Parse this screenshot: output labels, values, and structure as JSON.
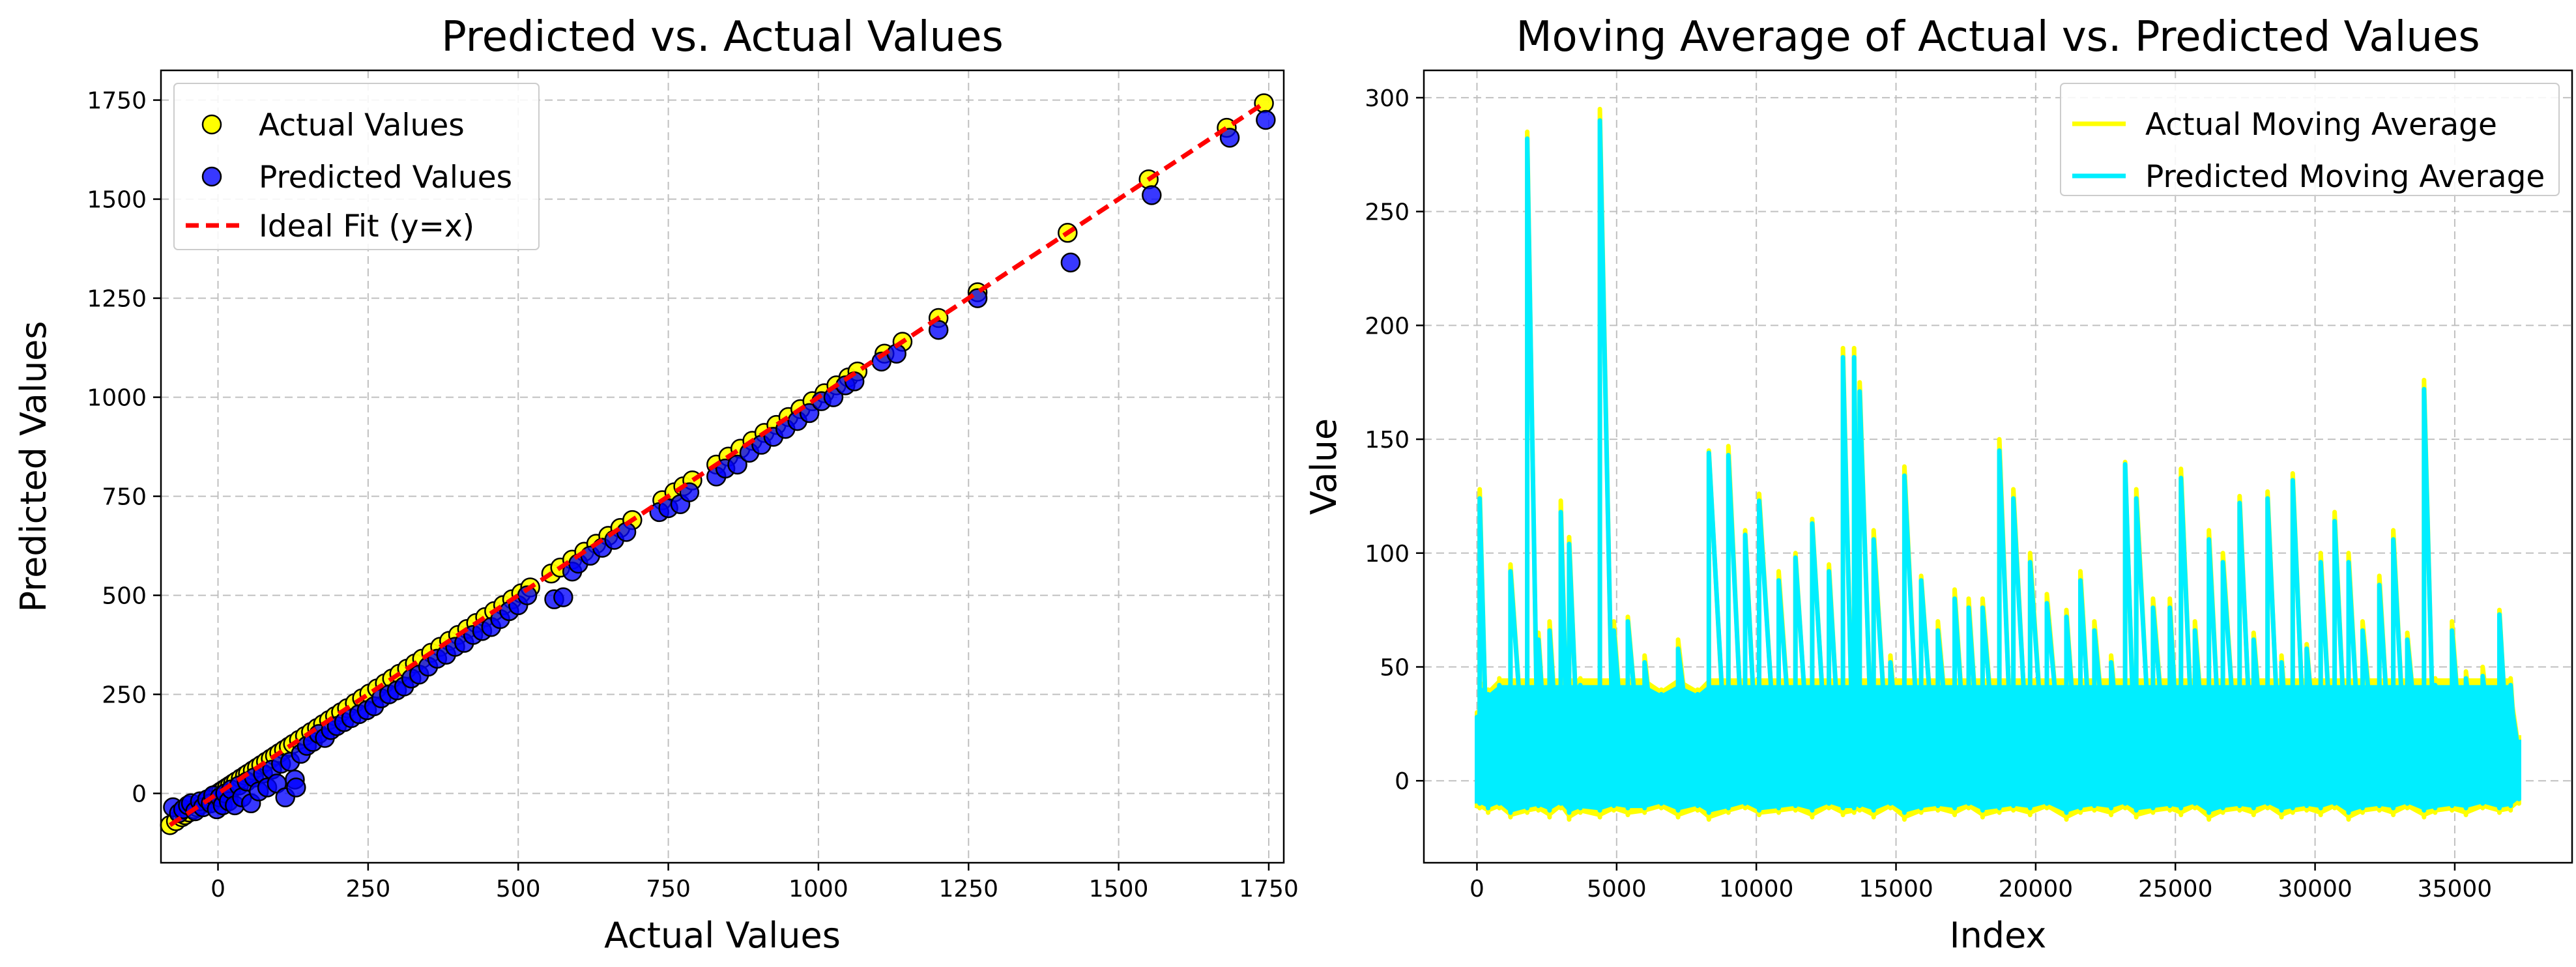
{
  "chart_data": [
    {
      "type": "scatter",
      "title": "Predicted vs. Actual Values",
      "xlabel": "Actual Values",
      "ylabel": "Predicted Values",
      "xlim": [
        -95,
        1775
      ],
      "ylim": [
        -175,
        1825
      ],
      "xticks": [
        0,
        250,
        500,
        750,
        1000,
        1250,
        1500,
        1750
      ],
      "yticks": [
        0,
        250,
        500,
        750,
        1000,
        1250,
        1500,
        1750
      ],
      "grid": true,
      "legend_position": "top-left",
      "legend": [
        "Actual Values",
        "Predicted Values",
        "Ideal Fit (y=x)"
      ],
      "colors": {
        "actual": "#ffff00",
        "predicted": "#0000ff",
        "ideal": "#ff0000",
        "edge": "#000000"
      },
      "ideal_fit": {
        "x": [
          -80,
          1742
        ],
        "y": [
          -80,
          1742
        ]
      },
      "series": [
        {
          "name": "Actual Values",
          "x": [
            -80,
            -70,
            -60,
            -55,
            -48,
            -40,
            -35,
            -28,
            -20,
            -15,
            -10,
            -5,
            0,
            5,
            10,
            15,
            20,
            25,
            30,
            38,
            45,
            50,
            58,
            65,
            72,
            80,
            88,
            95,
            102,
            110,
            118,
            125,
            135,
            145,
            155,
            165,
            175,
            185,
            195,
            205,
            215,
            228,
            240,
            252,
            265,
            278,
            290,
            302,
            315,
            328,
            340,
            355,
            370,
            385,
            400,
            415,
            430,
            445,
            460,
            475,
            490,
            505,
            520,
            555,
            570,
            590,
            610,
            630,
            650,
            670,
            690,
            740,
            760,
            775,
            790,
            830,
            850,
            870,
            890,
            910,
            930,
            950,
            970,
            990,
            1010,
            1030,
            1050,
            1065,
            1110,
            1140,
            1200,
            1265,
            1415,
            1550,
            1680,
            1742
          ],
          "y": [
            -80,
            -70,
            -60,
            -55,
            -48,
            -40,
            -35,
            -28,
            -20,
            -15,
            -10,
            -5,
            0,
            5,
            10,
            15,
            20,
            25,
            30,
            38,
            45,
            50,
            58,
            65,
            72,
            80,
            88,
            95,
            102,
            110,
            118,
            125,
            135,
            145,
            155,
            165,
            175,
            185,
            195,
            205,
            215,
            228,
            240,
            252,
            265,
            278,
            290,
            302,
            315,
            328,
            340,
            355,
            370,
            385,
            400,
            415,
            430,
            445,
            460,
            475,
            490,
            505,
            520,
            555,
            570,
            590,
            610,
            630,
            650,
            670,
            690,
            740,
            760,
            775,
            790,
            830,
            850,
            870,
            890,
            910,
            930,
            950,
            970,
            990,
            1010,
            1030,
            1050,
            1065,
            1110,
            1140,
            1200,
            1265,
            1415,
            1550,
            1680,
            1742
          ]
        },
        {
          "name": "Predicted Values",
          "x": [
            -75,
            -65,
            -58,
            -50,
            -45,
            -38,
            -30,
            -25,
            -18,
            -12,
            -8,
            -2,
            3,
            8,
            12,
            18,
            22,
            28,
            35,
            40,
            48,
            55,
            60,
            68,
            75,
            82,
            90,
            98,
            105,
            112,
            120,
            128,
            130,
            138,
            148,
            158,
            168,
            178,
            188,
            198,
            210,
            222,
            235,
            248,
            260,
            272,
            285,
            298,
            310,
            322,
            335,
            350,
            365,
            380,
            395,
            410,
            425,
            440,
            455,
            470,
            485,
            500,
            515,
            560,
            575,
            590,
            600,
            620,
            640,
            660,
            680,
            735,
            750,
            770,
            785,
            830,
            845,
            865,
            885,
            905,
            925,
            945,
            965,
            985,
            1005,
            1025,
            1045,
            1060,
            1105,
            1130,
            1200,
            1265,
            1420,
            1555,
            1685,
            1745
          ],
          "y": [
            -35,
            -50,
            -40,
            -30,
            -25,
            -45,
            -20,
            -35,
            -15,
            -25,
            -5,
            -40,
            -10,
            -30,
            0,
            -20,
            10,
            -30,
            20,
            -10,
            30,
            -25,
            40,
            5,
            50,
            15,
            60,
            25,
            75,
            -10,
            80,
            35,
            15,
            100,
            120,
            130,
            150,
            140,
            160,
            170,
            180,
            190,
            200,
            210,
            220,
            240,
            250,
            260,
            270,
            290,
            300,
            320,
            340,
            350,
            370,
            380,
            400,
            410,
            420,
            440,
            460,
            475,
            500,
            490,
            495,
            560,
            580,
            600,
            620,
            640,
            660,
            710,
            720,
            730,
            760,
            800,
            820,
            830,
            860,
            880,
            900,
            920,
            940,
            960,
            990,
            1000,
            1030,
            1040,
            1090,
            1110,
            1170,
            1250,
            1340,
            1510,
            1655,
            1700
          ]
        }
      ]
    },
    {
      "type": "line",
      "title": "Moving Average of Actual vs. Predicted Values",
      "xlabel": "Index",
      "ylabel": "Value",
      "xlim": [
        -1900,
        39200
      ],
      "ylim": [
        -36,
        312
      ],
      "xticks": [
        0,
        5000,
        10000,
        15000,
        20000,
        25000,
        30000,
        35000
      ],
      "yticks": [
        0,
        50,
        100,
        150,
        200,
        250,
        300
      ],
      "grid": true,
      "legend_position": "top-right",
      "legend": [
        "Actual Moving Average",
        "Predicted Moving Average"
      ],
      "n_points": 37300,
      "colors": {
        "actual": "#ffff00",
        "predicted": "#00eeff"
      },
      "series": [
        {
          "name": "Actual Moving Average",
          "x": [
            0,
            100,
            400,
            800,
            1200,
            1800,
            2200,
            2600,
            3000,
            3300,
            3700,
            4400,
            4900,
            5400,
            6000,
            6600,
            7200,
            7900,
            8300,
            9000,
            9600,
            10100,
            10800,
            11400,
            12000,
            12600,
            13100,
            13500,
            13700,
            14200,
            14800,
            15300,
            15900,
            16500,
            17100,
            17600,
            18100,
            18700,
            19200,
            19800,
            20400,
            21100,
            21600,
            22100,
            22700,
            23200,
            23600,
            24200,
            24800,
            25200,
            25700,
            26200,
            26700,
            27300,
            27800,
            28300,
            28800,
            29200,
            29700,
            30200,
            30700,
            31200,
            31700,
            32300,
            32800,
            33300,
            33900,
            34300,
            34900,
            35400,
            36000,
            36600,
            37000,
            37300
          ],
          "y": [
            30,
            128,
            40,
            45,
            95,
            285,
            65,
            70,
            123,
            107,
            45,
            295,
            70,
            72,
            55,
            40,
            62,
            40,
            145,
            147,
            110,
            126,
            92,
            100,
            115,
            95,
            190,
            190,
            175,
            110,
            55,
            138,
            90,
            70,
            84,
            80,
            80,
            150,
            128,
            100,
            82,
            75,
            92,
            70,
            55,
            140,
            128,
            80,
            80,
            137,
            70,
            110,
            100,
            125,
            65,
            127,
            55,
            135,
            60,
            100,
            118,
            100,
            70,
            90,
            110,
            65,
            176,
            45,
            70,
            48,
            50,
            75,
            45,
            20
          ],
          "low": [
            -12,
            -12,
            -14,
            -12,
            -16,
            -14,
            -13,
            -16,
            -12,
            -17,
            -14,
            -16,
            -13,
            -15,
            -14,
            -12,
            -16,
            -13,
            -17,
            -14,
            -12,
            -15,
            -14,
            -13,
            -16,
            -12,
            -15,
            -14,
            -13,
            -16,
            -12,
            -17,
            -14,
            -13,
            -15,
            -12,
            -16,
            -14,
            -13,
            -15,
            -12,
            -17,
            -14,
            -13,
            -15,
            -12,
            -16,
            -14,
            -13,
            -15,
            -12,
            -17,
            -14,
            -13,
            -15,
            -12,
            -16,
            -14,
            -13,
            -15,
            -12,
            -17,
            -14,
            -13,
            -15,
            -12,
            -16,
            -14,
            -13,
            -15,
            -12,
            -14,
            -13,
            -10
          ]
        },
        {
          "name": "Predicted Moving Average",
          "x": [
            0,
            100,
            400,
            800,
            1200,
            1800,
            2200,
            2600,
            3000,
            3300,
            3700,
            4400,
            4900,
            5400,
            6000,
            6600,
            7200,
            7900,
            8300,
            9000,
            9600,
            10100,
            10800,
            11400,
            12000,
            12600,
            13100,
            13500,
            13700,
            14200,
            14800,
            15300,
            15900,
            16500,
            17100,
            17600,
            18100,
            18700,
            19200,
            19800,
            20400,
            21100,
            21600,
            22100,
            22700,
            23200,
            23600,
            24200,
            24800,
            25200,
            25700,
            26200,
            26700,
            27300,
            27800,
            28300,
            28800,
            29200,
            29700,
            30200,
            30700,
            31200,
            31700,
            32300,
            32800,
            33300,
            33900,
            34300,
            34900,
            35400,
            36000,
            36600,
            37000,
            37300
          ],
          "y": [
            28,
            124,
            38,
            42,
            92,
            282,
            62,
            66,
            118,
            104,
            42,
            290,
            66,
            70,
            52,
            38,
            58,
            38,
            144,
            143,
            108,
            123,
            88,
            98,
            113,
            92,
            186,
            186,
            171,
            106,
            52,
            134,
            88,
            66,
            80,
            76,
            76,
            145,
            124,
            96,
            78,
            72,
            88,
            66,
            52,
            139,
            124,
            76,
            76,
            133,
            66,
            106,
            96,
            122,
            62,
            124,
            52,
            132,
            58,
            96,
            114,
            96,
            66,
            86,
            106,
            62,
            172,
            42,
            66,
            45,
            46,
            73,
            42,
            18
          ],
          "low": [
            -10,
            -10,
            -12,
            -10,
            -14,
            -12,
            -11,
            -13,
            -10,
            -14,
            -12,
            -13,
            -11,
            -12,
            -12,
            -10,
            -13,
            -11,
            -14,
            -12,
            -10,
            -13,
            -12,
            -11,
            -13,
            -10,
            -12,
            -12,
            -11,
            -13,
            -10,
            -14,
            -12,
            -11,
            -12,
            -10,
            -13,
            -12,
            -11,
            -12,
            -10,
            -14,
            -12,
            -11,
            -12,
            -10,
            -13,
            -12,
            -11,
            -12,
            -10,
            -14,
            -12,
            -11,
            -12,
            -10,
            -13,
            -12,
            -11,
            -12,
            -10,
            -14,
            -12,
            -11,
            -12,
            -10,
            -13,
            -12,
            -11,
            -12,
            -10,
            -12,
            -11,
            -8
          ]
        }
      ]
    }
  ]
}
